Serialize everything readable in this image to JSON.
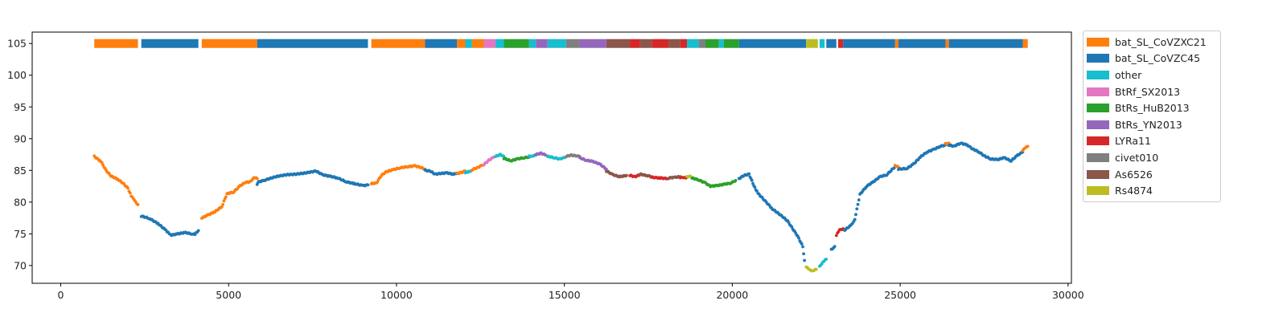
{
  "chart_data": {
    "type": "scatter",
    "title": "",
    "xlabel": "",
    "ylabel": "",
    "xlim": [
      -850,
      30100
    ],
    "ylim": [
      67.2,
      106.8
    ],
    "xticks": [
      0,
      5000,
      10000,
      15000,
      20000,
      25000,
      30000
    ],
    "xtick_labels": [
      "0",
      "5000",
      "10000",
      "15000",
      "20000",
      "25000",
      "30000"
    ],
    "yticks": [
      70,
      75,
      80,
      85,
      90,
      95,
      100,
      105
    ],
    "ytick_labels": [
      "70",
      "75",
      "80",
      "85",
      "90",
      "95",
      "100",
      "105"
    ],
    "grid": false,
    "legend_position": "outside right, top",
    "series_colors": {
      "bat_SL_CoVZXC21": "#ff7f0e",
      "bat_SL_CoVZC45": "#1f77b4",
      "other": "#17becf",
      "BtRf_SX2013": "#e377c2",
      "BtRs_HuB2013": "#2ca02c",
      "BtRs_YN2013": "#9467bd",
      "LYRa11": "#d62728",
      "civet010": "#7f7f7f",
      "As6526": "#8c564b",
      "Rs4874": "#bcbd22"
    },
    "legend": [
      "bat_SL_CoVZXC21",
      "bat_SL_CoVZC45",
      "other",
      "BtRf_SX2013",
      "BtRs_HuB2013",
      "BtRs_YN2013",
      "LYRa11",
      "civet010",
      "As6526",
      "Rs4874"
    ],
    "top_band": {
      "y": 105,
      "segments": [
        {
          "x0": 1000,
          "x1": 2300,
          "series": "bat_SL_CoVZXC21"
        },
        {
          "x0": 2400,
          "x1": 4100,
          "series": "bat_SL_CoVZC45"
        },
        {
          "x0": 4200,
          "x1": 5850,
          "series": "bat_SL_CoVZXC21"
        },
        {
          "x0": 5850,
          "x1": 9150,
          "series": "bat_SL_CoVZC45"
        },
        {
          "x0": 9250,
          "x1": 10850,
          "series": "bat_SL_CoVZXC21"
        },
        {
          "x0": 10850,
          "x1": 11800,
          "series": "bat_SL_CoVZC45"
        },
        {
          "x0": 11800,
          "x1": 12050,
          "series": "bat_SL_CoVZXC21"
        },
        {
          "x0": 12050,
          "x1": 12250,
          "series": "other"
        },
        {
          "x0": 12250,
          "x1": 12600,
          "series": "bat_SL_CoVZXC21"
        },
        {
          "x0": 12600,
          "x1": 12950,
          "series": "BtRf_SX2013"
        },
        {
          "x0": 12950,
          "x1": 13200,
          "series": "other"
        },
        {
          "x0": 13200,
          "x1": 13950,
          "series": "BtRs_HuB2013"
        },
        {
          "x0": 13950,
          "x1": 14150,
          "series": "other"
        },
        {
          "x0": 14150,
          "x1": 14500,
          "series": "BtRs_YN2013"
        },
        {
          "x0": 14500,
          "x1": 15050,
          "series": "other"
        },
        {
          "x0": 15050,
          "x1": 15450,
          "series": "civet010"
        },
        {
          "x0": 15450,
          "x1": 16250,
          "series": "BtRs_YN2013"
        },
        {
          "x0": 16250,
          "x1": 16950,
          "series": "As6526"
        },
        {
          "x0": 16950,
          "x1": 17250,
          "series": "LYRa11"
        },
        {
          "x0": 17250,
          "x1": 17600,
          "series": "As6526"
        },
        {
          "x0": 17600,
          "x1": 18100,
          "series": "LYRa11"
        },
        {
          "x0": 18100,
          "x1": 18450,
          "series": "As6526"
        },
        {
          "x0": 18450,
          "x1": 18650,
          "series": "LYRa11"
        },
        {
          "x0": 18650,
          "x1": 19000,
          "series": "other"
        },
        {
          "x0": 19000,
          "x1": 19200,
          "series": "civet010"
        },
        {
          "x0": 19200,
          "x1": 19600,
          "series": "BtRs_HuB2013"
        },
        {
          "x0": 19600,
          "x1": 19750,
          "series": "other"
        },
        {
          "x0": 19750,
          "x1": 20200,
          "series": "BtRs_HuB2013"
        },
        {
          "x0": 20200,
          "x1": 22200,
          "series": "bat_SL_CoVZC45"
        },
        {
          "x0": 22200,
          "x1": 22550,
          "series": "Rs4874"
        },
        {
          "x0": 22600,
          "x1": 22750,
          "series": "other"
        },
        {
          "x0": 22800,
          "x1": 23100,
          "series": "bat_SL_CoVZC45"
        },
        {
          "x0": 23150,
          "x1": 23300,
          "series": "LYRa11"
        },
        {
          "x0": 23300,
          "x1": 24850,
          "series": "bat_SL_CoVZC45"
        },
        {
          "x0": 24850,
          "x1": 24950,
          "series": "bat_SL_CoVZXC21"
        },
        {
          "x0": 24950,
          "x1": 26350,
          "series": "bat_SL_CoVZC45"
        },
        {
          "x0": 26350,
          "x1": 26450,
          "series": "bat_SL_CoVZXC21"
        },
        {
          "x0": 26450,
          "x1": 28650,
          "series": "bat_SL_CoVZC45"
        },
        {
          "x0": 28650,
          "x1": 28800,
          "series": "bat_SL_CoVZXC21"
        }
      ]
    },
    "traces": [
      {
        "series": "bat_SL_CoVZXC21",
        "points": [
          [
            1000,
            87.2
          ],
          [
            1200,
            86.4
          ],
          [
            1350,
            85.0
          ],
          [
            1500,
            84.1
          ],
          [
            1700,
            83.6
          ],
          [
            1850,
            83.0
          ],
          [
            2000,
            82.2
          ],
          [
            2100,
            81.0
          ],
          [
            2200,
            80.2
          ],
          [
            2300,
            79.6
          ]
        ]
      },
      {
        "series": "bat_SL_CoVZC45",
        "points": [
          [
            2400,
            77.8
          ],
          [
            2650,
            77.4
          ],
          [
            2900,
            76.6
          ],
          [
            3100,
            75.7
          ],
          [
            3200,
            75.2
          ],
          [
            3300,
            74.8
          ],
          [
            3500,
            75.0
          ],
          [
            3700,
            75.2
          ],
          [
            3900,
            75.0
          ],
          [
            4000,
            74.9
          ],
          [
            4100,
            75.5
          ]
        ]
      },
      {
        "series": "bat_SL_CoVZXC21",
        "points": [
          [
            4200,
            77.5
          ],
          [
            4400,
            78.0
          ],
          [
            4600,
            78.5
          ],
          [
            4800,
            79.3
          ],
          [
            4950,
            81.3
          ],
          [
            5150,
            81.6
          ],
          [
            5350,
            82.6
          ],
          [
            5500,
            83.1
          ],
          [
            5650,
            83.2
          ],
          [
            5750,
            83.9
          ],
          [
            5850,
            83.7
          ]
        ]
      },
      {
        "series": "bat_SL_CoVZC45",
        "points": [
          [
            5850,
            82.8
          ],
          [
            5900,
            83.2
          ],
          [
            6100,
            83.5
          ],
          [
            6400,
            84.0
          ],
          [
            6700,
            84.3
          ],
          [
            7000,
            84.4
          ],
          [
            7300,
            84.6
          ],
          [
            7600,
            84.9
          ],
          [
            7800,
            84.3
          ],
          [
            8000,
            84.1
          ],
          [
            8250,
            83.8
          ],
          [
            8500,
            83.2
          ],
          [
            8750,
            82.9
          ],
          [
            9000,
            82.6
          ],
          [
            9150,
            82.7
          ]
        ]
      },
      {
        "series": "bat_SL_CoVZXC21",
        "points": [
          [
            9250,
            82.9
          ],
          [
            9400,
            83.0
          ],
          [
            9550,
            84.2
          ],
          [
            9700,
            84.8
          ],
          [
            9900,
            85.1
          ],
          [
            10100,
            85.4
          ],
          [
            10350,
            85.6
          ],
          [
            10550,
            85.7
          ],
          [
            10700,
            85.5
          ],
          [
            10850,
            85.2
          ]
        ]
      },
      {
        "series": "bat_SL_CoVZC45",
        "points": [
          [
            10850,
            85.0
          ],
          [
            11000,
            84.9
          ],
          [
            11150,
            84.4
          ],
          [
            11300,
            84.5
          ],
          [
            11500,
            84.6
          ],
          [
            11700,
            84.4
          ],
          [
            11800,
            84.5
          ]
        ]
      },
      {
        "series": "bat_SL_CoVZXC21",
        "points": [
          [
            11800,
            84.5
          ],
          [
            11950,
            84.7
          ],
          [
            12050,
            84.9
          ]
        ]
      },
      {
        "series": "other",
        "points": [
          [
            12050,
            84.6
          ],
          [
            12150,
            84.8
          ],
          [
            12250,
            85.0
          ]
        ]
      },
      {
        "series": "bat_SL_CoVZXC21",
        "points": [
          [
            12250,
            85.1
          ],
          [
            12400,
            85.4
          ],
          [
            12550,
            85.8
          ]
        ]
      },
      {
        "series": "BtRf_SX2013",
        "points": [
          [
            12600,
            85.9
          ],
          [
            12750,
            86.6
          ],
          [
            12900,
            87.1
          ]
        ]
      },
      {
        "series": "other",
        "points": [
          [
            12950,
            87.2
          ],
          [
            13100,
            87.5
          ],
          [
            13200,
            87.2
          ]
        ]
      },
      {
        "series": "BtRs_HuB2013",
        "points": [
          [
            13200,
            86.9
          ],
          [
            13400,
            86.5
          ],
          [
            13600,
            86.8
          ],
          [
            13800,
            87.0
          ],
          [
            13950,
            87.1
          ]
        ]
      },
      {
        "series": "other",
        "points": [
          [
            13950,
            87.2
          ],
          [
            14050,
            87.3
          ],
          [
            14150,
            87.4
          ]
        ]
      },
      {
        "series": "BtRs_YN2013",
        "points": [
          [
            14150,
            87.5
          ],
          [
            14300,
            87.7
          ],
          [
            14450,
            87.4
          ]
        ]
      },
      {
        "series": "other",
        "points": [
          [
            14500,
            87.2
          ],
          [
            14700,
            87.0
          ],
          [
            14850,
            86.8
          ],
          [
            15000,
            87.0
          ]
        ]
      },
      {
        "series": "civet010",
        "points": [
          [
            15050,
            87.2
          ],
          [
            15200,
            87.4
          ],
          [
            15350,
            87.3
          ],
          [
            15450,
            87.2
          ]
        ]
      },
      {
        "series": "BtRs_YN2013",
        "points": [
          [
            15450,
            87.0
          ],
          [
            15650,
            86.6
          ],
          [
            15850,
            86.4
          ],
          [
            16050,
            86.0
          ],
          [
            16250,
            85.2
          ]
        ]
      },
      {
        "series": "As6526",
        "points": [
          [
            16250,
            84.9
          ],
          [
            16450,
            84.3
          ],
          [
            16650,
            84.0
          ],
          [
            16850,
            84.2
          ]
        ]
      },
      {
        "series": "LYRa11",
        "points": [
          [
            16950,
            84.2
          ],
          [
            17100,
            84.0
          ],
          [
            17250,
            84.3
          ]
        ]
      },
      {
        "series": "As6526",
        "points": [
          [
            17250,
            84.4
          ],
          [
            17450,
            84.2
          ],
          [
            17600,
            84.0
          ]
        ]
      },
      {
        "series": "LYRa11",
        "points": [
          [
            17600,
            83.9
          ],
          [
            17850,
            83.8
          ],
          [
            18100,
            83.7
          ]
        ]
      },
      {
        "series": "As6526",
        "points": [
          [
            18100,
            83.8
          ],
          [
            18300,
            83.9
          ],
          [
            18450,
            84.0
          ]
        ]
      },
      {
        "series": "LYRa11",
        "points": [
          [
            18450,
            83.9
          ],
          [
            18550,
            83.8
          ],
          [
            18650,
            83.9
          ]
        ]
      },
      {
        "series": "Rs4874",
        "points": [
          [
            18650,
            84.0
          ],
          [
            18750,
            84.1
          ]
        ]
      },
      {
        "series": "BtRs_HuB2013",
        "points": [
          [
            18800,
            83.8
          ],
          [
            19000,
            83.5
          ],
          [
            19200,
            83.0
          ],
          [
            19350,
            82.5
          ],
          [
            19550,
            82.6
          ],
          [
            19750,
            82.8
          ],
          [
            19950,
            83.0
          ],
          [
            20100,
            83.4
          ]
        ]
      },
      {
        "series": "bat_SL_CoVZC45",
        "points": [
          [
            20200,
            83.7
          ],
          [
            20350,
            84.2
          ],
          [
            20500,
            84.4
          ],
          [
            20700,
            81.9
          ],
          [
            20800,
            81.2
          ],
          [
            21200,
            78.9
          ],
          [
            21500,
            77.7
          ],
          [
            21650,
            77.0
          ],
          [
            21800,
            75.8
          ],
          [
            21950,
            74.6
          ],
          [
            22100,
            73.0
          ],
          [
            22150,
            70.8
          ]
        ]
      },
      {
        "series": "Rs4874",
        "points": [
          [
            22200,
            69.8
          ],
          [
            22300,
            69.3
          ],
          [
            22400,
            69.2
          ],
          [
            22500,
            69.4
          ]
        ]
      },
      {
        "series": "other",
        "points": [
          [
            22600,
            69.8
          ],
          [
            22700,
            70.6
          ],
          [
            22800,
            71.0
          ]
        ]
      },
      {
        "series": "bat_SL_CoVZC45",
        "points": [
          [
            22950,
            72.5
          ],
          [
            23050,
            73.0
          ]
        ]
      },
      {
        "series": "LYRa11",
        "points": [
          [
            23100,
            74.8
          ],
          [
            23200,
            75.6
          ],
          [
            23300,
            75.8
          ]
        ]
      },
      {
        "series": "bat_SL_CoVZC45",
        "points": [
          [
            23350,
            75.6
          ],
          [
            23550,
            76.4
          ],
          [
            23650,
            77.3
          ],
          [
            23800,
            81.2
          ],
          [
            24000,
            82.5
          ],
          [
            24200,
            83.2
          ],
          [
            24400,
            84.0
          ],
          [
            24600,
            84.3
          ],
          [
            24850,
            85.6
          ]
        ]
      },
      {
        "series": "bat_SL_CoVZXC21",
        "points": [
          [
            24850,
            85.8
          ],
          [
            24950,
            85.5
          ]
        ]
      },
      {
        "series": "bat_SL_CoVZC45",
        "points": [
          [
            24950,
            85.2
          ],
          [
            25200,
            85.3
          ],
          [
            25400,
            86.0
          ],
          [
            25600,
            87.1
          ],
          [
            25800,
            87.9
          ],
          [
            26000,
            88.3
          ],
          [
            26200,
            88.8
          ],
          [
            26350,
            89.0
          ]
        ]
      },
      {
        "series": "bat_SL_CoVZXC21",
        "points": [
          [
            26350,
            89.2
          ],
          [
            26450,
            89.3
          ]
        ]
      },
      {
        "series": "bat_SL_CoVZC45",
        "points": [
          [
            26450,
            89.0
          ],
          [
            26600,
            88.8
          ],
          [
            26800,
            89.3
          ],
          [
            27000,
            89.0
          ],
          [
            27150,
            88.4
          ],
          [
            27350,
            87.9
          ],
          [
            27500,
            87.3
          ],
          [
            27700,
            86.8
          ],
          [
            27900,
            86.7
          ],
          [
            28100,
            87.0
          ],
          [
            28300,
            86.5
          ],
          [
            28500,
            87.4
          ],
          [
            28650,
            87.9
          ]
        ]
      },
      {
        "series": "bat_SL_CoVZXC21",
        "points": [
          [
            28650,
            88.2
          ],
          [
            28750,
            88.6
          ],
          [
            28800,
            88.8
          ]
        ]
      }
    ]
  }
}
